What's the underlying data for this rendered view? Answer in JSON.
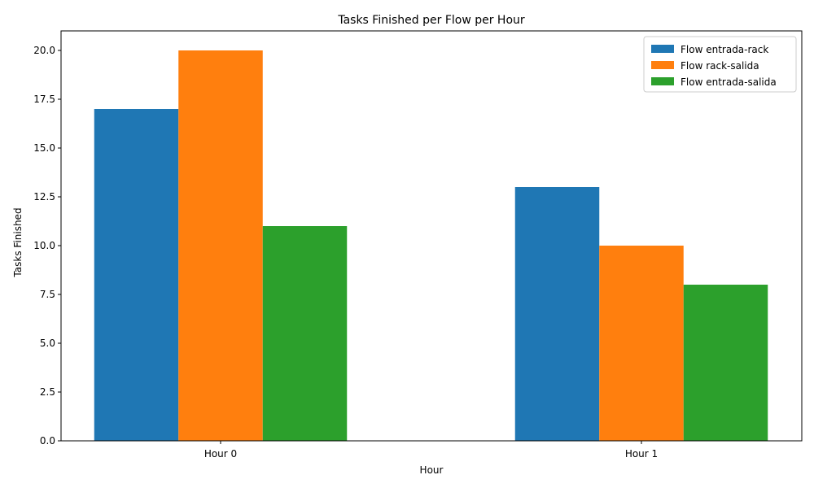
{
  "chart_data": {
    "type": "bar",
    "title": "Tasks Finished per Flow per Hour",
    "xlabel": "Hour",
    "ylabel": "Tasks Finished",
    "categories": [
      "Hour 0",
      "Hour 1"
    ],
    "series": [
      {
        "name": "Flow entrada-rack",
        "values": [
          17,
          13
        ],
        "color": "#1f77b4"
      },
      {
        "name": "Flow rack-salida",
        "values": [
          20,
          10
        ],
        "color": "#ff7f0e"
      },
      {
        "name": "Flow entrada-salida",
        "values": [
          11,
          8
        ],
        "color": "#2ca02c"
      }
    ],
    "ylim": [
      0,
      21
    ],
    "yticks": [
      "0.0",
      "2.5",
      "5.0",
      "7.5",
      "10.0",
      "12.5",
      "15.0",
      "17.5",
      "20.0"
    ],
    "grid": false,
    "legend": "top-right"
  }
}
